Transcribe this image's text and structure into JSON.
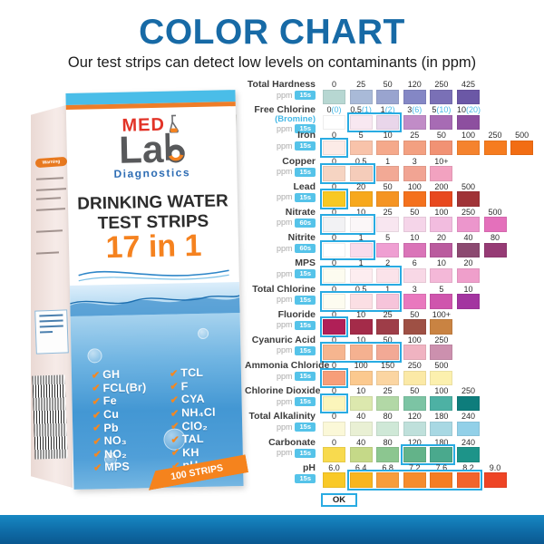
{
  "header": {
    "title": "COLOR CHART",
    "subtitle": "Our test strips can detect low levels on contaminants (in ppm)"
  },
  "box": {
    "brand": {
      "med": "MED",
      "lab": "La",
      "diagnostics": "Diagnostics"
    },
    "product_title_line1": "DRINKING WATER",
    "product_title_line2": "TEST STRIPS",
    "count_label": "17 in 1",
    "strips_label": "100 STRIPS",
    "warning_label": "Warning",
    "checklist_left": [
      "GH",
      "FCL(Br)",
      "Fe",
      "Cu",
      "Pb",
      "NO₃",
      "NO₂",
      "MPS"
    ],
    "checklist_right": [
      "TCL",
      "F",
      "CYA",
      "NH₄Cl",
      "ClO₂",
      "TAL",
      "KH",
      "pH"
    ]
  },
  "strips": {
    "pad_colors": [
      "#fbfbf8",
      "#fbfbf8",
      "#f8f8f4",
      "#f6f5ef",
      "#f4f2e6",
      "#f4ea86",
      "#f4df3f",
      "#f1ce39",
      "#f2a441",
      "#ee8a36",
      "#a63148",
      "#f0f0f1",
      "#ebebec",
      "#f3f3f4",
      "#f0f0f1",
      "#f8e3ec",
      "#ddecd9"
    ]
  },
  "chart_data": {
    "type": "table",
    "title": "COLOR CHART",
    "unit_label": "ppm",
    "ok_label": "OK",
    "highlight_color": "#29abe2",
    "badge_color": "#55c3e9",
    "rows": [
      {
        "name": "Total Hardness",
        "unit": "ppm",
        "time": "15s",
        "labels": [
          "0",
          "25",
          "50",
          "120",
          "250",
          "425"
        ],
        "colors": [
          "#b7d7d2",
          "#a9bad8",
          "#99a4cf",
          "#8487c5",
          "#7a70b6",
          "#6b58a6"
        ],
        "highlight": []
      },
      {
        "name": "Free Chlorine",
        "sub": "(Bromine)",
        "unit": "ppm",
        "time": "15s",
        "labels": [
          "0(0)",
          "0.5(1)",
          "1(2)",
          "3(6)",
          "5(10)",
          "10(20)"
        ],
        "colors": [
          "#ffffff",
          "#f8e8f1",
          "#e9d6ea",
          "#c18cc7",
          "#a76bb4",
          "#8d4f9f"
        ],
        "highlight": [
          1,
          2
        ]
      },
      {
        "name": "Iron",
        "unit": "ppm",
        "time": "15s",
        "labels": [
          "0",
          "5",
          "10",
          "25",
          "50",
          "100",
          "250",
          "500"
        ],
        "colors": [
          "#fcebe7",
          "#f8c3aa",
          "#f5a98b",
          "#f3a081",
          "#f19274",
          "#f5832e",
          "#f67c1f",
          "#f26d13"
        ],
        "highlight": [
          0
        ]
      },
      {
        "name": "Copper",
        "unit": "ppm",
        "time": "15s",
        "labels": [
          "0",
          "0.5",
          "1",
          "3",
          "10+"
        ],
        "colors": [
          "#f6d4c2",
          "#f5ccba",
          "#f2a995",
          "#f1a493",
          "#f2a2c0"
        ],
        "highlight": [
          0,
          1
        ]
      },
      {
        "name": "Lead",
        "unit": "ppm",
        "time": "15s",
        "labels": [
          "0",
          "20",
          "50",
          "100",
          "200",
          "500"
        ],
        "colors": [
          "#f8c822",
          "#f7a81c",
          "#f59422",
          "#f4711d",
          "#e8491f",
          "#a03337"
        ],
        "highlight": [
          0
        ]
      },
      {
        "name": "Nitrate",
        "unit": "ppm",
        "time": "60s",
        "labels": [
          "0",
          "10",
          "25",
          "50",
          "100",
          "250",
          "500"
        ],
        "colors": [
          "#f2f2f4",
          "#fbf7f8",
          "#f8e6f0",
          "#f5d5e9",
          "#f2bcdf",
          "#ec96cc",
          "#e470bb"
        ],
        "highlight": [
          0,
          1
        ]
      },
      {
        "name": "Nitrite",
        "unit": "ppm",
        "time": "60s",
        "labels": [
          "0",
          "1",
          "5",
          "10",
          "20",
          "40",
          "80"
        ],
        "colors": [
          "#ffffff",
          "#f9dcec",
          "#ef9fd2",
          "#da74b8",
          "#ba5b9e",
          "#8c4a71",
          "#963b75"
        ],
        "highlight": [
          0,
          1
        ]
      },
      {
        "name": "MPS",
        "unit": "ppm",
        "time": "15s",
        "labels": [
          "0",
          "1",
          "2",
          "6",
          "10",
          "20"
        ],
        "colors": [
          "#fdfcf0",
          "#fdedf0",
          "#fbe3ea",
          "#f8d8e6",
          "#f4b8d8",
          "#ef9fcb"
        ],
        "highlight": [
          0,
          1,
          2
        ]
      },
      {
        "name": "Total Chlorine",
        "unit": "ppm",
        "time": "15s",
        "labels": [
          "0",
          "0.5",
          "1",
          "3",
          "5",
          "10"
        ],
        "colors": [
          "#fdfcf0",
          "#fbdfe4",
          "#f6c4da",
          "#e978be",
          "#cf55ad",
          "#a335a0"
        ],
        "highlight": [
          0,
          1,
          2
        ]
      },
      {
        "name": "Fluoride",
        "unit": "ppm",
        "time": "15s",
        "labels": [
          "0",
          "10",
          "25",
          "50",
          "100+"
        ],
        "colors": [
          "#b01f57",
          "#a42b49",
          "#9e3d48",
          "#9e5044",
          "#c98342"
        ],
        "highlight": [
          0
        ]
      },
      {
        "name": "Cyanuric Acid",
        "unit": "ppm",
        "time": "15s",
        "labels": [
          "0",
          "10",
          "50",
          "100",
          "250"
        ],
        "colors": [
          "#f6b58f",
          "#f5b190",
          "#f2a995",
          "#f0b3c1",
          "#cc90ae"
        ],
        "highlight": [
          0,
          1,
          2
        ]
      },
      {
        "name": "Ammonia Chloride",
        "unit": "ppm",
        "time": "15s",
        "labels": [
          "0",
          "100",
          "150",
          "250",
          "500"
        ],
        "colors": [
          "#f79e79",
          "#fbc98f",
          "#fbd5a2",
          "#fbe9a6",
          "#fcf0ae"
        ],
        "highlight": [
          0
        ]
      },
      {
        "name": "Chlorine Dioxide",
        "unit": "ppm",
        "time": "15s",
        "labels": [
          "0",
          "10",
          "25",
          "50",
          "100",
          "250"
        ],
        "colors": [
          "#fbf5bb",
          "#dce8ae",
          "#b2d8a6",
          "#7cc4a4",
          "#4db1a4",
          "#0e7d7c"
        ],
        "highlight": [
          0
        ]
      },
      {
        "name": "Total Alkalinity",
        "unit": "ppm",
        "time": "15s",
        "labels": [
          "0",
          "40",
          "80",
          "120",
          "180",
          "240"
        ],
        "colors": [
          "#fbf8d8",
          "#e9f0d4",
          "#cfe8d7",
          "#bfe0db",
          "#a8d8e3",
          "#92d0e8"
        ],
        "highlight": []
      },
      {
        "name": "Carbonate",
        "unit": "ppm",
        "time": "15s",
        "labels": [
          "0",
          "40",
          "80",
          "120",
          "180",
          "240"
        ],
        "colors": [
          "#f8da4e",
          "#c5d988",
          "#8cc690",
          "#63b389",
          "#4aa98d",
          "#1d9489"
        ],
        "highlight": [
          3,
          4
        ]
      },
      {
        "name": "pH",
        "unit": "",
        "time": "15s",
        "labels": [
          "6.0",
          "6.4",
          "6.8",
          "7.2",
          "7.6",
          "8.2",
          "9.0"
        ],
        "colors": [
          "#f9c927",
          "#f9b51f",
          "#f79d3c",
          "#f58c2e",
          "#f57d24",
          "#f2642c",
          "#ee4425"
        ],
        "highlight": [
          1,
          2,
          3,
          4,
          5
        ],
        "ok_label": "OK"
      }
    ]
  },
  "colors": {
    "accent_blue": "#176aa6",
    "brand_orange": "#f5821f",
    "highlight_cyan": "#29abe2",
    "footer_blue": "#0f6ca7"
  }
}
